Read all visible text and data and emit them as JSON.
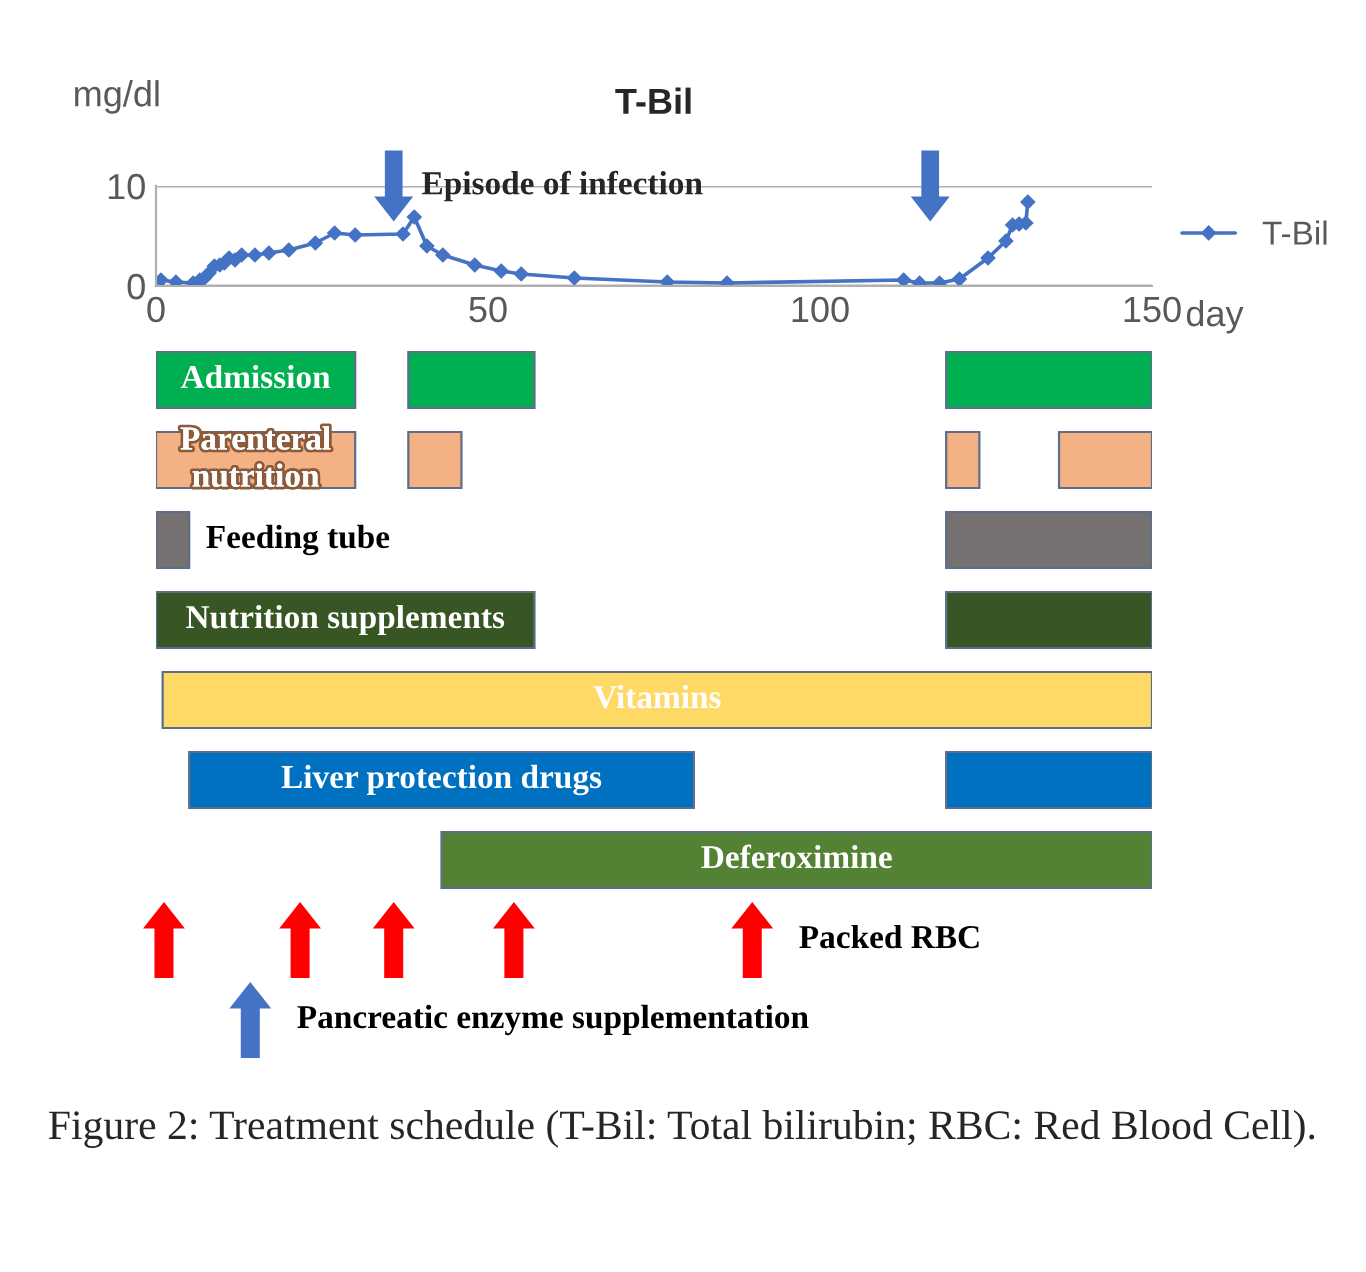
{
  "chart_data": [
    {
      "type": "line",
      "title": "T-Bil",
      "xlabel": "day",
      "ylabel": "mg/dl",
      "xlim": [
        0,
        150
      ],
      "xticks": [
        0,
        50,
        100,
        150
      ],
      "ylim": [
        0,
        10
      ],
      "yticks": [
        0,
        10
      ],
      "grid": "y",
      "legend": "right",
      "series": [
        {
          "name": "T-Bil",
          "color": "#4472c4",
          "marker": "diamond",
          "x": [
            0.75,
            3,
            5.6,
            6.6,
            7.3,
            8,
            8.8,
            9.6,
            10.3,
            11,
            11.9,
            12.9,
            14.9,
            17,
            20,
            24,
            26.9,
            30,
            37.2,
            38.9,
            40.8,
            43.2,
            48,
            52,
            55,
            63,
            77,
            86,
            112.6,
            115,
            118,
            121,
            125.3,
            128,
            129,
            130,
            131,
            131.3
          ],
          "values": [
            0.6,
            0.4,
            0.3,
            0.6,
            0.8,
            1.3,
            2.0,
            2.1,
            2.3,
            2.8,
            2.6,
            3.1,
            3.1,
            3.3,
            3.6,
            4.3,
            5.3,
            5.1,
            5.2,
            6.9,
            4.0,
            3.1,
            2.1,
            1.5,
            1.2,
            0.8,
            0.4,
            0.3,
            0.6,
            0.3,
            0.3,
            0.7,
            2.8,
            4.5,
            6.1,
            6.2,
            6.3,
            8.4
          ]
        },
        {
          "type": "scatter",
          "name": "Episode of infection",
          "color": "#4472c4",
          "x": [
            35.8,
            116.6
          ],
          "values": [
            10,
            10
          ]
        }
      ]
    },
    {
      "type": "bar",
      "orientation": "horizontal",
      "xlim": [
        0,
        150
      ],
      "categories": [
        "Admission",
        "Parenteral nutrition",
        "Feeding tube",
        "Nutrition supplements",
        "Vitamins",
        "Liver protection drugs",
        "Deferoximine",
        "Packed RBC",
        "Pancreatic enzyme supplementation"
      ],
      "series": [
        {
          "base": [
            0,
            0,
            0,
            0,
            1,
            5,
            43,
            null,
            null
          ],
          "values": [
            30,
            30,
            5,
            57,
            149,
            76,
            107,
            null,
            null
          ],
          "colors": [
            "#00b050",
            "#f4b183",
            "#767171",
            "#375623",
            "#ffd966",
            "#0070c0",
            "#548235",
            null,
            null
          ]
        },
        {
          "base": [
            38,
            38,
            119,
            119,
            null,
            119,
            null,
            null,
            null
          ],
          "values": [
            19,
            8,
            31,
            31,
            null,
            31,
            null,
            null,
            null
          ],
          "colors": [
            "#00b050",
            "#f4b183",
            "#767171",
            "#375623",
            null,
            "#0070c0",
            null,
            null,
            null
          ]
        },
        {
          "base": [
            119,
            119,
            null,
            null,
            null,
            null,
            null,
            null,
            null
          ],
          "values": [
            31,
            5,
            null,
            null,
            null,
            null,
            null,
            null,
            null
          ],
          "colors": [
            "#00b050",
            "#f4b183",
            null,
            null,
            null,
            null,
            null,
            null,
            null
          ]
        },
        {
          "base": [
            null,
            136,
            null,
            null,
            null,
            null,
            null,
            null,
            null
          ],
          "values": [
            null,
            14,
            null,
            null,
            null,
            null,
            null,
            null,
            null
          ],
          "colors": [
            null,
            "#f4b183",
            null,
            null,
            null,
            null,
            null,
            null,
            null
          ]
        },
        {
          "type": "scatter",
          "color": "#ff0000",
          "x": [
            "Packed RBC",
            "Packed RBC",
            "Packed RBC",
            "Packed RBC",
            "Packed RBC"
          ],
          "values": [
            1.2,
            21.7,
            35.8,
            53.9,
            89.8
          ]
        },
        {
          "type": "scatter",
          "color": "#4472c4",
          "x": [
            "Pancreatic enzyme supplementation"
          ],
          "values": [
            14.2
          ]
        }
      ],
      "annotations": [
        "Figure 2: Treatment schedule (T-Bil: Total bilirubin; RBC: Red Blood Cell)."
      ]
    }
  ]
}
